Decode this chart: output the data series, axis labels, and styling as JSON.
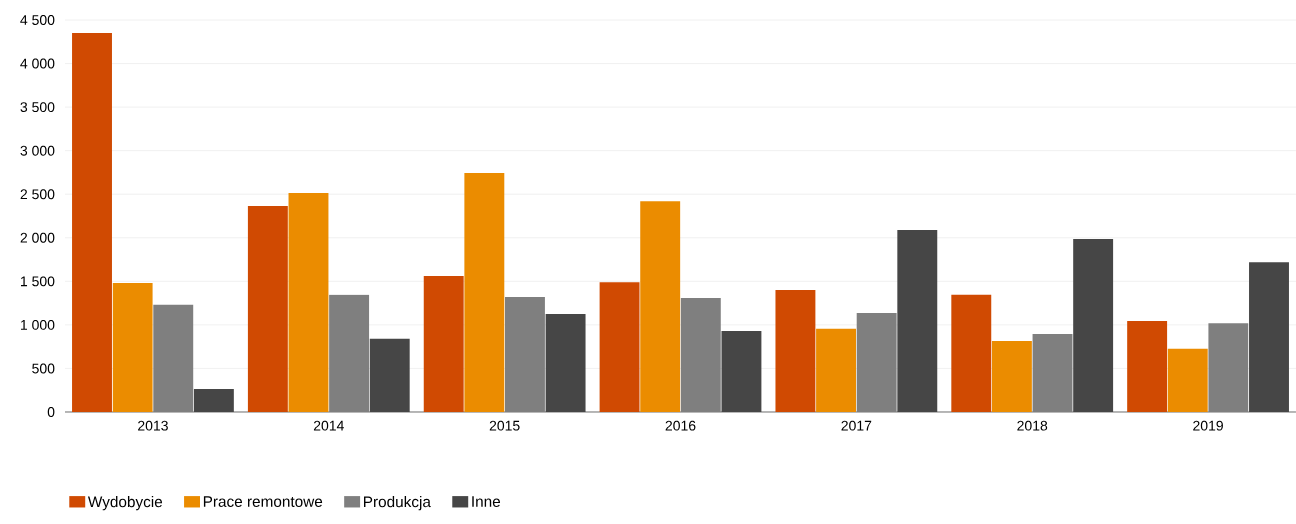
{
  "chart_data": {
    "type": "bar",
    "categories": [
      "2013",
      "2014",
      "2015",
      "2016",
      "2017",
      "2018",
      "2019"
    ],
    "series": [
      {
        "name": "Wydobycie",
        "color": "#d04a02",
        "values": [
          4350,
          2365,
          1560,
          1490,
          1400,
          1345,
          1045
        ]
      },
      {
        "name": "Prace remontowe",
        "color": "#eb8c00",
        "values": [
          1480,
          2515,
          2745,
          2420,
          955,
          815,
          725
        ]
      },
      {
        "name": "Produkcja",
        "color": "#7f7f7f",
        "values": [
          1230,
          1345,
          1320,
          1310,
          1135,
          895,
          1020
        ]
      },
      {
        "name": "Inne",
        "color": "#464646",
        "values": [
          265,
          840,
          1125,
          930,
          2090,
          1985,
          1720
        ]
      }
    ],
    "ylim": [
      0,
      4500
    ],
    "yticks": [
      0,
      500,
      {
        "value": 1000,
        "label": "1 000"
      },
      {
        "value": 1500,
        "label": "1 500"
      },
      {
        "value": 2000,
        "label": "2 000"
      },
      {
        "value": 2500,
        "label": "2 500"
      },
      {
        "value": 3000,
        "label": "3 000"
      },
      {
        "value": 3500,
        "label": "3 500"
      },
      {
        "value": 4000,
        "label": "4 000"
      },
      {
        "value": 4500,
        "label": "4 500"
      }
    ],
    "grid": "y",
    "legend": "bottom left"
  }
}
